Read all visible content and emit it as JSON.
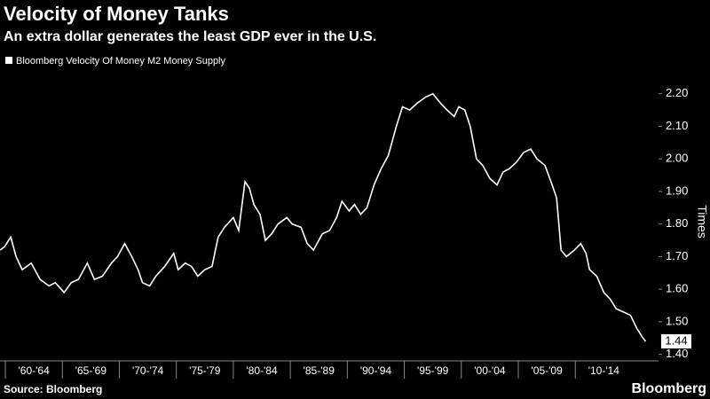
{
  "chart_data": {
    "type": "line",
    "title": "Velocity of Money Tanks",
    "subtitle": "An extra dollar generates the least GDP ever in the U.S.",
    "y_label": "Times",
    "source": "Source: Bloomberg",
    "brand": "Bloomberg",
    "grid": false,
    "series": [
      {
        "name": "Bloomberg Velocity Of Money M2 Money Supply",
        "color": "#ffffff",
        "x": [
          1959.53,
          1959.92,
          1960.47,
          1960.94,
          1961.48,
          1962.27,
          1963.05,
          1963.83,
          1964.38,
          1965.16,
          1965.78,
          1966.41,
          1967.19,
          1967.81,
          1968.52,
          1969.3,
          1969.84,
          1970.47,
          1971.09,
          1971.64,
          1972.03,
          1972.66,
          1973.2,
          1973.98,
          1974.77,
          1975.16,
          1975.78,
          1976.33,
          1976.88,
          1977.5,
          1978.13,
          1978.67,
          1979.22,
          1980.0,
          1980.47,
          1981.02,
          1981.41,
          1981.8,
          1982.34,
          1982.81,
          1983.36,
          1983.91,
          1984.69,
          1985.16,
          1985.94,
          1986.48,
          1987.03,
          1987.81,
          1988.44,
          1989.06,
          1989.53,
          1990.16,
          1990.63,
          1991.17,
          1991.72,
          1992.34,
          1992.97,
          1993.59,
          1994.3,
          1994.84,
          1995.47,
          1996.09,
          1996.88,
          1997.5,
          1998.2,
          1998.75,
          1999.38,
          1999.77,
          2000.31,
          2000.78,
          2001.33,
          2001.88,
          2002.5,
          2003.13,
          2003.67,
          2004.22,
          2004.84,
          2005.47,
          2006.09,
          2006.64,
          2007.34,
          2007.97,
          2008.36,
          2008.75,
          2009.22,
          2009.92,
          2010.47,
          2010.94,
          2011.25,
          2011.88,
          2012.5,
          2013.05,
          2013.59,
          2014.22,
          2014.84,
          2015.39,
          2015.94,
          2016.17
        ],
        "values": [
          1.72,
          1.73,
          1.76,
          1.7,
          1.66,
          1.68,
          1.63,
          1.61,
          1.62,
          1.59,
          1.62,
          1.63,
          1.68,
          1.63,
          1.64,
          1.68,
          1.7,
          1.74,
          1.7,
          1.66,
          1.62,
          1.61,
          1.64,
          1.67,
          1.71,
          1.66,
          1.68,
          1.67,
          1.64,
          1.66,
          1.67,
          1.76,
          1.79,
          1.82,
          1.78,
          1.93,
          1.91,
          1.86,
          1.83,
          1.75,
          1.77,
          1.8,
          1.82,
          1.8,
          1.79,
          1.74,
          1.72,
          1.77,
          1.78,
          1.82,
          1.87,
          1.84,
          1.86,
          1.83,
          1.85,
          1.92,
          1.97,
          2.01,
          2.1,
          2.16,
          2.15,
          2.17,
          2.19,
          2.2,
          2.17,
          2.15,
          2.13,
          2.16,
          2.15,
          2.1,
          2.0,
          1.98,
          1.94,
          1.92,
          1.96,
          1.97,
          1.99,
          2.02,
          2.03,
          2.0,
          1.98,
          1.92,
          1.88,
          1.72,
          1.7,
          1.72,
          1.74,
          1.71,
          1.66,
          1.64,
          1.59,
          1.57,
          1.54,
          1.53,
          1.52,
          1.48,
          1.45,
          1.44
        ]
      }
    ],
    "xlim": [
      1959.53,
      2017.3
    ],
    "xticks": [
      {
        "value": 1962.5,
        "label": "'60-'64"
      },
      {
        "value": 1967.5,
        "label": "'65-'69"
      },
      {
        "value": 1972.5,
        "label": "'70-'74"
      },
      {
        "value": 1977.5,
        "label": "'75-'79"
      },
      {
        "value": 1982.5,
        "label": "'80-'84"
      },
      {
        "value": 1987.5,
        "label": "'85-'89"
      },
      {
        "value": 1992.5,
        "label": "'90-'94"
      },
      {
        "value": 1997.5,
        "label": "'95-'99"
      },
      {
        "value": 2002.5,
        "label": "'00-'04"
      },
      {
        "value": 2007.5,
        "label": "'05-'09"
      },
      {
        "value": 2012.5,
        "label": "'10-'14"
      }
    ],
    "ylim": [
      1.38,
      2.27
    ],
    "yticks": [
      {
        "value": 1.4,
        "label": "1.40"
      },
      {
        "value": 1.5,
        "label": "1.50"
      },
      {
        "value": 1.6,
        "label": "1.60"
      },
      {
        "value": 1.7,
        "label": "1.70"
      },
      {
        "value": 1.8,
        "label": "1.80"
      },
      {
        "value": 1.9,
        "label": "1.90"
      },
      {
        "value": 2.0,
        "label": "2.00"
      },
      {
        "value": 2.1,
        "label": "2.10"
      },
      {
        "value": 2.2,
        "label": "2.20"
      }
    ]
  }
}
